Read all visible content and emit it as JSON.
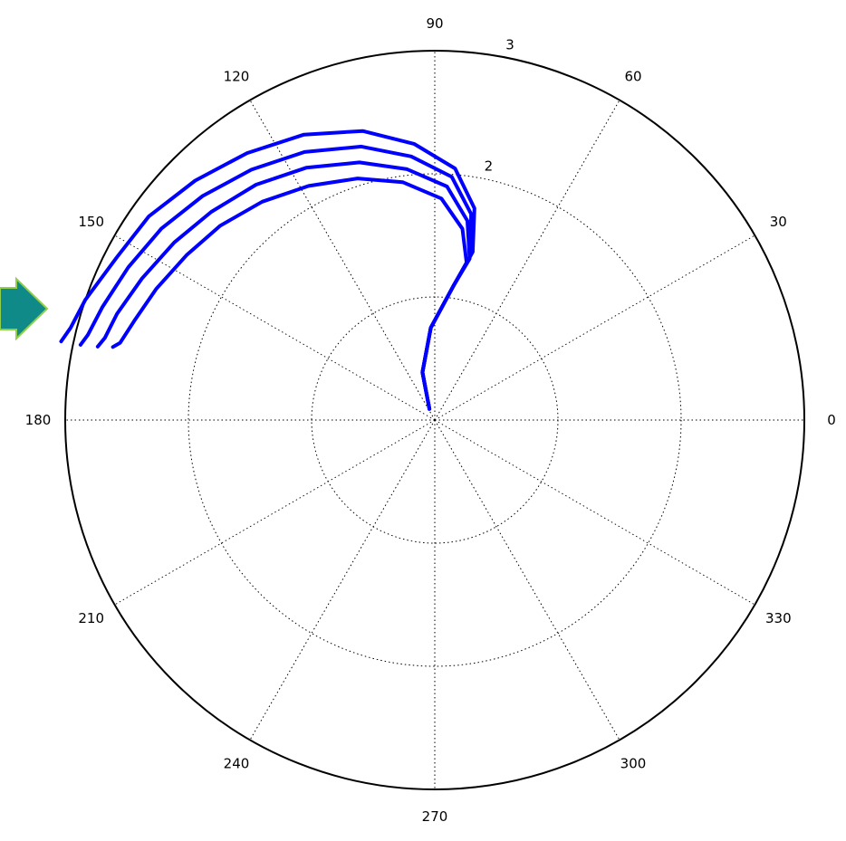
{
  "colors": {
    "curve": "#0000ff",
    "arrow_fill": "#0f8a88",
    "arrow_stroke": "#8fcf4a",
    "grid": "#000000"
  },
  "icons": {
    "pointer": "right-arrow-icon"
  },
  "chart_data": {
    "type": "line",
    "coordinate_system": "polar",
    "angle_unit": "degrees",
    "angle_ticks": [
      0,
      30,
      60,
      90,
      120,
      150,
      180,
      210,
      240,
      270,
      300,
      330
    ],
    "angle_tick_labels": [
      "0",
      "30",
      "60",
      "90",
      "120",
      "150",
      "180",
      "210",
      "240",
      "270",
      "300",
      "330"
    ],
    "radial_range": [
      0,
      3
    ],
    "radial_rings": [
      1,
      2,
      3
    ],
    "radial_tick_labels": [
      "2",
      "3"
    ],
    "grid": true,
    "series": [
      {
        "theta": [
          115.6,
          104.5,
          92.5,
          82.1,
          77.3,
          79.4,
          85.4,
          94.3,
          104.0,
          114.6,
          125.1,
          135.0,
          144.5,
          152.9,
          161.0,
          165.8,
          168.1
        ],
        "r": [
          0.1,
          0.4,
          0.75,
          1.1,
          1.4,
          1.75,
          2.05,
          2.25,
          2.42,
          2.55,
          2.65,
          2.75,
          2.85,
          2.9,
          3.0,
          3.05,
          3.1
        ]
      },
      {
        "theta": [
          115.6,
          104.5,
          92.5,
          82.1,
          77.7,
          80.0,
          86.0,
          95.1,
          105.0,
          115.9,
          126.2,
          136.0,
          145.0,
          153.5,
          161.2,
          166.2,
          168.0
        ],
        "r": [
          0.1,
          0.4,
          0.75,
          1.1,
          1.37,
          1.7,
          1.98,
          2.15,
          2.3,
          2.42,
          2.52,
          2.62,
          2.71,
          2.78,
          2.85,
          2.9,
          2.94
        ]
      },
      {
        "theta": [
          115.6,
          104.5,
          92.5,
          82.1,
          77.8,
          80.7,
          87.0,
          96.3,
          106.3,
          117.0,
          127.2,
          137.0,
          145.7,
          154.2,
          161.5,
          166.0,
          167.7
        ],
        "r": [
          0.1,
          0.4,
          0.75,
          1.1,
          1.34,
          1.64,
          1.9,
          2.05,
          2.18,
          2.3,
          2.4,
          2.48,
          2.56,
          2.64,
          2.72,
          2.76,
          2.8
        ]
      },
      {
        "theta": [
          115.6,
          104.5,
          92.5,
          82.1,
          78.5,
          81.8,
          88.3,
          97.7,
          107.7,
          118.3,
          128.3,
          137.8,
          146.4,
          154.8,
          161.8,
          166.2,
          167.2
        ],
        "r": [
          0.1,
          0.4,
          0.75,
          1.1,
          1.3,
          1.57,
          1.8,
          1.95,
          2.06,
          2.16,
          2.26,
          2.35,
          2.42,
          2.5,
          2.57,
          2.63,
          2.68
        ]
      }
    ]
  }
}
